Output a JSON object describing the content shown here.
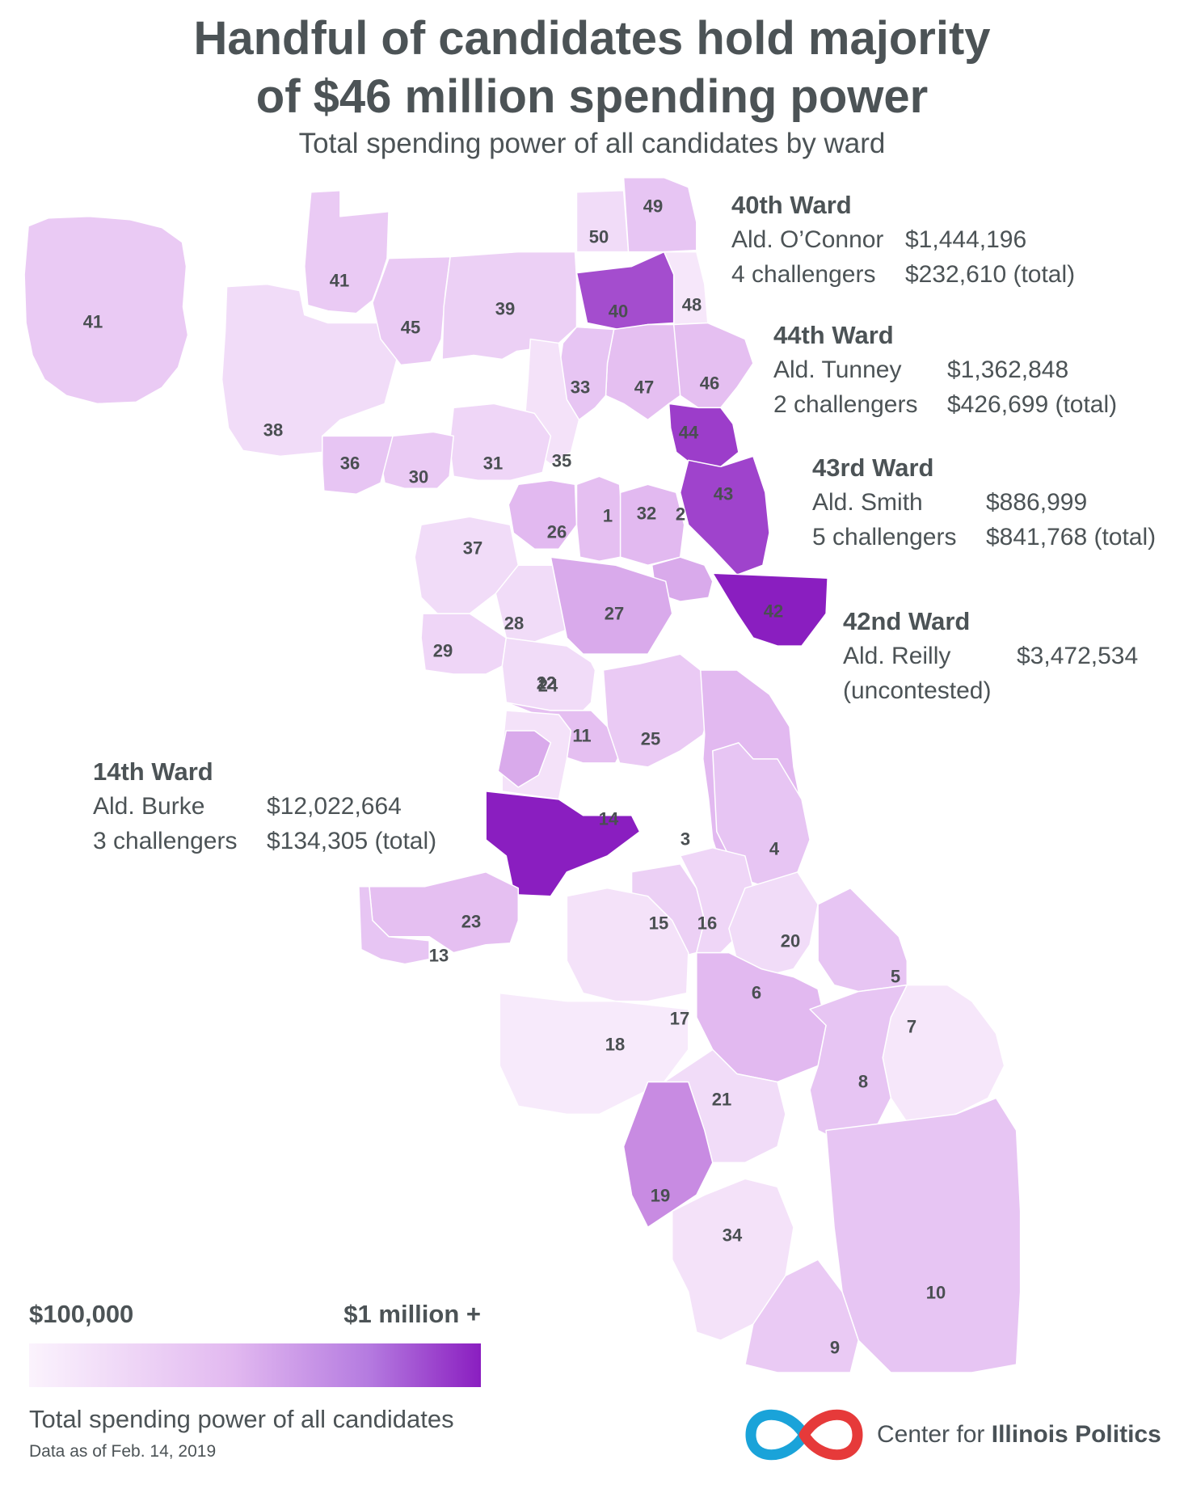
{
  "header": {
    "title_line1": "Handful of candidates hold majority",
    "title_line2": "of $46 million spending power",
    "subtitle": "Total spending power of all candidates by ward"
  },
  "colors": {
    "scale_low": "#fbf3fd",
    "scale_high": "#8a1ec0",
    "text": "#4c5356",
    "logo_blue": "#1aa3d9",
    "logo_red": "#e63a3a"
  },
  "callouts": {
    "w40": {
      "heading": "40th Ward",
      "r1_label": "Ald. O’Connor",
      "r1_value": "$1,444,196",
      "r2_label": "4 challengers",
      "r2_value": "$232,610 (total)"
    },
    "w44": {
      "heading": "44th Ward",
      "r1_label": "Ald. Tunney",
      "r1_value": "$1,362,848",
      "r2_label": "2 challengers",
      "r2_value": "$426,699 (total)"
    },
    "w43": {
      "heading": "43rd Ward",
      "r1_label": "Ald. Smith",
      "r1_value": "$886,999",
      "r2_label": "5 challengers",
      "r2_value": "$841,768 (total)"
    },
    "w42": {
      "heading": "42nd Ward",
      "r1_label": "Ald. Reilly",
      "r1_value": "$3,472,534",
      "r2_label": "(uncontested)",
      "r2_value": ""
    },
    "w14": {
      "heading": "14th Ward",
      "r1_label": "Ald. Burke",
      "r1_value": "$12,022,664",
      "r2_label": "3 challengers",
      "r2_value": "$134,305 (total)"
    }
  },
  "legend": {
    "min_label": "$100,000",
    "max_label": "$1 million +",
    "title": "Total spending power of all candidates",
    "note": "Data as of Feb. 14, 2019"
  },
  "branding": {
    "name_regular": "Center for ",
    "name_bold": "Illinois Politics"
  },
  "wards": [
    {
      "id": "41",
      "level": 0.35
    },
    {
      "id": "41",
      "level": 0.35
    },
    {
      "id": "38",
      "level": 0.2
    },
    {
      "id": "45",
      "level": 0.35
    },
    {
      "id": "39",
      "level": 0.3
    },
    {
      "id": "50",
      "level": 0.2
    },
    {
      "id": "49",
      "level": 0.4
    },
    {
      "id": "40",
      "level": 0.85
    },
    {
      "id": "48",
      "level": 0.1
    },
    {
      "id": "47",
      "level": 0.45
    },
    {
      "id": "46",
      "level": 0.45
    },
    {
      "id": "33",
      "level": 0.4
    },
    {
      "id": "44",
      "level": 0.9
    },
    {
      "id": "35",
      "level": 0.15
    },
    {
      "id": "31",
      "level": 0.25
    },
    {
      "id": "30",
      "level": 0.35
    },
    {
      "id": "36",
      "level": 0.4
    },
    {
      "id": "43",
      "level": 0.88
    },
    {
      "id": "26",
      "level": 0.5
    },
    {
      "id": "1",
      "level": 0.45
    },
    {
      "id": "32",
      "level": 0.5
    },
    {
      "id": "2",
      "level": 0.55
    },
    {
      "id": "37",
      "level": 0.2
    },
    {
      "id": "28",
      "level": 0.2
    },
    {
      "id": "27",
      "level": 0.55
    },
    {
      "id": "42",
      "level": 1.0
    },
    {
      "id": "29",
      "level": 0.25
    },
    {
      "id": "24",
      "level": 0.2
    },
    {
      "id": "25",
      "level": 0.45
    },
    {
      "id": "22",
      "level": 0.15
    },
    {
      "id": "12",
      "level": 0.55
    },
    {
      "id": "11",
      "level": 0.35
    },
    {
      "id": "14",
      "level": 1.0
    },
    {
      "id": "3",
      "level": 0.5
    },
    {
      "id": "4",
      "level": 0.4
    },
    {
      "id": "23",
      "level": 0.45
    },
    {
      "id": "13",
      "level": 0.4
    },
    {
      "id": "15",
      "level": 0.3
    },
    {
      "id": "16",
      "level": 0.25
    },
    {
      "id": "20",
      "level": 0.2
    },
    {
      "id": "5",
      "level": 0.4
    },
    {
      "id": "6",
      "level": 0.5
    },
    {
      "id": "17",
      "level": 0.15
    },
    {
      "id": "18",
      "level": 0.08
    },
    {
      "id": "7",
      "level": 0.1
    },
    {
      "id": "8",
      "level": 0.4
    },
    {
      "id": "21",
      "level": 0.2
    },
    {
      "id": "19",
      "level": 0.65
    },
    {
      "id": "34",
      "level": 0.15
    },
    {
      "id": "10",
      "level": 0.4
    },
    {
      "id": "9",
      "level": 0.35
    }
  ]
}
